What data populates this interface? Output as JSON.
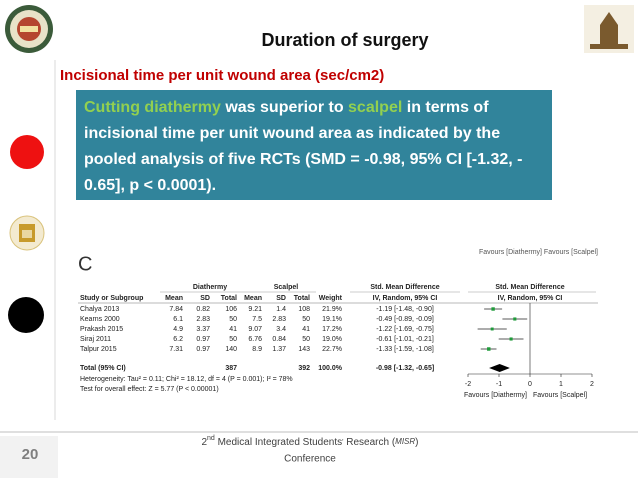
{
  "slide": {
    "title": "Duration of surgery",
    "subtitle": "Incisional time per unit wound area (sec/cm2)",
    "callout": [
      [
        {
          "t": "Cutting diathermy",
          "hl": true
        },
        {
          "t": " was superior to ",
          "hl": false
        },
        {
          "t": "scalpel",
          "hl": true
        },
        {
          "t": " in terms of",
          "hl": false
        }
      ],
      [
        {
          "t": "incisional time per unit wound area as indicated by the",
          "hl": false
        }
      ],
      [
        {
          "t": "pooled analysis of five RCTs (SMD = -0.98, 95% CI [-1.32, -",
          "hl": false
        }
      ],
      [
        {
          "t": "0.65], p < 0.0001).",
          "hl": false
        }
      ]
    ],
    "page_number": "20",
    "footer": {
      "sup": "nd",
      "line1a": "2",
      "line1b": " Medical Integrated Students",
      "apos": "'",
      "line1c": " Research (",
      "misr": "MISR",
      "line1d": ")",
      "line2": "Conference"
    }
  },
  "forest": {
    "panel_letter": "C",
    "top_favours": "Favours [Diathermy]   Favours [Scalpel]",
    "group_headers": [
      "Diathermy",
      "Scalpel",
      "Std. Mean Difference",
      "Std. Mean Difference"
    ],
    "columns": [
      "Study or Subgroup",
      "Mean",
      "SD",
      "Total",
      "Mean",
      "SD",
      "Total",
      "Weight",
      "IV, Random, 95% CI",
      "IV, Random, 95% CI"
    ],
    "rows": [
      [
        "Chalya 2013",
        "7.84",
        "0.82",
        "106",
        "9.21",
        "1.4",
        "108",
        "21.9%",
        "-1.19 [-1.48, -0.90]"
      ],
      [
        "Kearns 2000",
        "6.1",
        "2.83",
        "50",
        "7.5",
        "2.83",
        "50",
        "19.1%",
        "-0.49 [-0.89, -0.09]"
      ],
      [
        "Prakash 2015",
        "4.9",
        "3.37",
        "41",
        "9.07",
        "3.4",
        "41",
        "17.2%",
        "-1.22 [-1.69, -0.75]"
      ],
      [
        "Siraj 2011",
        "6.2",
        "0.97",
        "50",
        "6.76",
        "0.84",
        "50",
        "19.0%",
        "-0.61 [-1.01, -0.21]"
      ],
      [
        "Talpur 2015",
        "7.31",
        "0.97",
        "140",
        "8.9",
        "1.37",
        "143",
        "22.7%",
        "-1.33 [-1.59, -1.08]"
      ]
    ],
    "estimates": [
      {
        "est": -1.19,
        "lo": -1.48,
        "hi": -0.9,
        "weight": 21.9
      },
      {
        "est": -0.49,
        "lo": -0.89,
        "hi": -0.09,
        "weight": 19.1
      },
      {
        "est": -1.22,
        "lo": -1.69,
        "hi": -0.75,
        "weight": 17.2
      },
      {
        "est": -0.61,
        "lo": -1.01,
        "hi": -0.21,
        "weight": 19.0
      },
      {
        "est": -1.33,
        "lo": -1.59,
        "hi": -1.08,
        "weight": 22.7
      }
    ],
    "total_row": [
      "Total (95% CI)",
      "387",
      "392",
      "100.0%",
      "-0.98 [-1.32, -0.65]"
    ],
    "total_estimate": {
      "est": -0.98,
      "lo": -1.32,
      "hi": -0.65
    },
    "heterogeneity": "Heterogeneity: Tau² = 0.11; Chi² = 18.12, df = 4 (P = 0.001); I² = 78%",
    "overall_test": "Test for overall effect: Z = 5.77 (P < 0.00001)",
    "xlim": [
      -2,
      2
    ],
    "xticks": [
      -2,
      -1,
      0,
      1,
      2
    ],
    "favours_left": "Favours [Diathermy]",
    "favours_right": "Favours [Scalpel]"
  }
}
